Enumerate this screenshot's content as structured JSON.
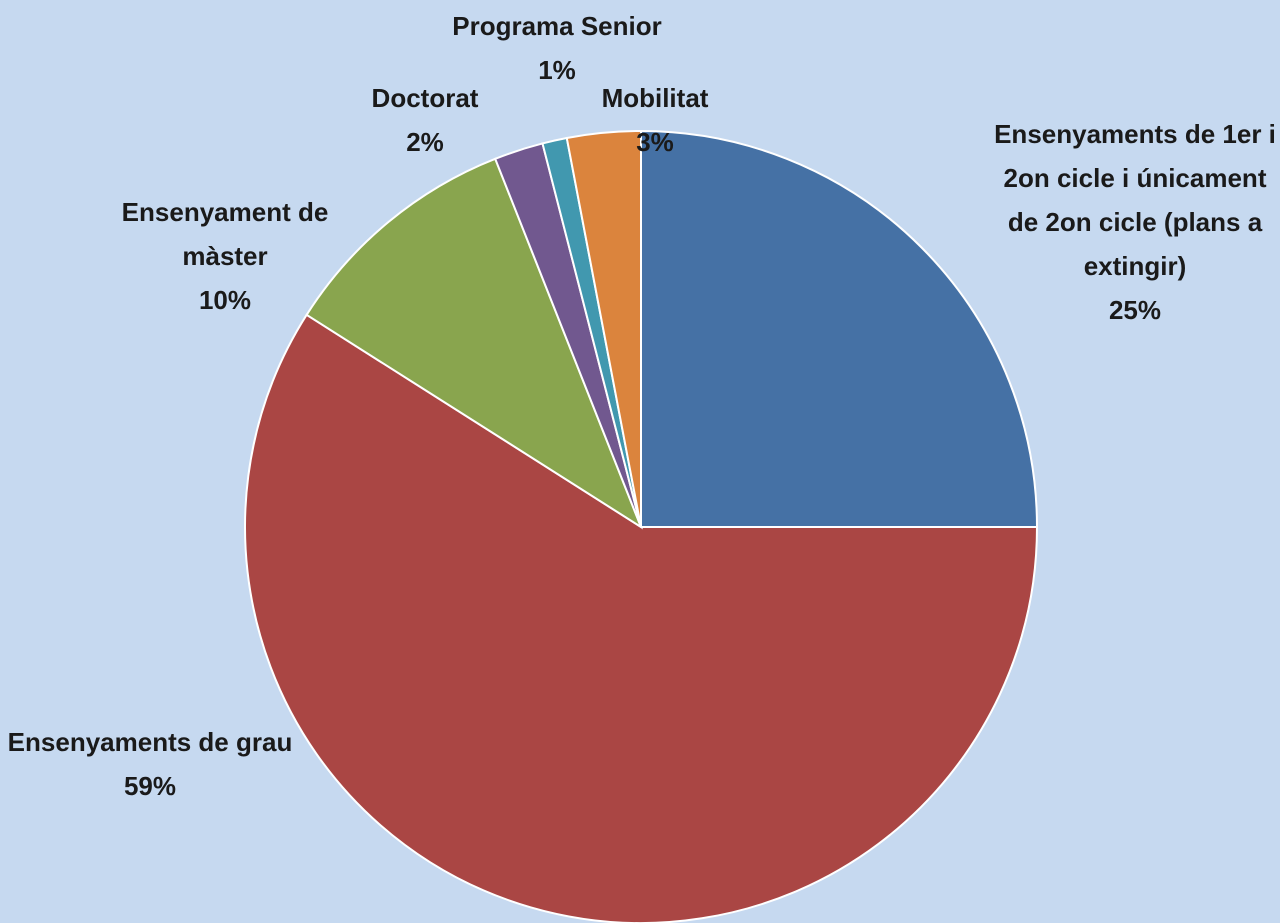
{
  "chart_data": {
    "type": "pie",
    "categories": [
      "Ensenyaments de 1er i 2on cicle i únicament de 2on cicle (plans a extingir)",
      "Ensenyaments de grau",
      "Ensenyament de màster",
      "Doctorat",
      "Programa Senior",
      "Mobilitat"
    ],
    "values": [
      25,
      59,
      10,
      2,
      1,
      3
    ],
    "value_labels": [
      "25%",
      "59%",
      "10%",
      "2%",
      "1%",
      "3%"
    ],
    "colors": [
      "#4571a5",
      "#aa4644",
      "#89a54e",
      "#71588f",
      "#4198af",
      "#db843d"
    ]
  }
}
